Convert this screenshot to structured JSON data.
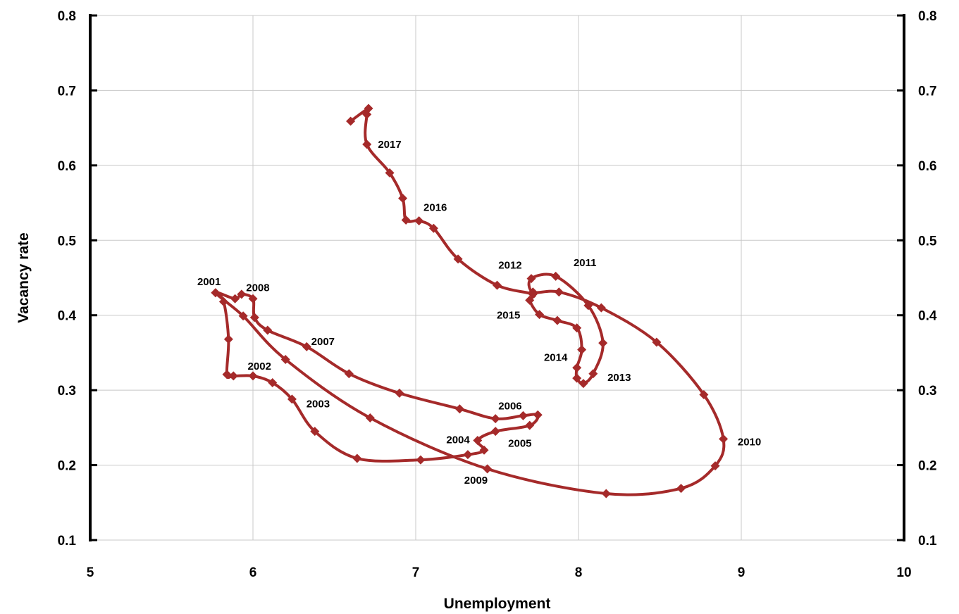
{
  "chart_data": {
    "type": "line",
    "title": "",
    "xlabel": "Unemployment",
    "ylabel": "Vacancy rate",
    "xlim": [
      5,
      10
    ],
    "ylim": [
      0.1,
      0.8
    ],
    "x_ticks": [
      "5",
      "6",
      "7",
      "8",
      "9",
      "10"
    ],
    "y_ticks": [
      "0.1",
      "0.2",
      "0.3",
      "0.4",
      "0.5",
      "0.6",
      "0.7",
      "0.8"
    ],
    "grid": true,
    "line_color": "#a52a2a",
    "marker": "diamond",
    "series": [
      {
        "points": [
          [
            5.77,
            0.43
          ],
          [
            5.82,
            0.418
          ],
          [
            5.85,
            0.368
          ],
          [
            5.84,
            0.321
          ],
          [
            5.88,
            0.319
          ],
          [
            6.0,
            0.319
          ],
          [
            6.12,
            0.31
          ],
          [
            6.24,
            0.288
          ],
          [
            6.38,
            0.245
          ],
          [
            6.64,
            0.209
          ],
          [
            7.03,
            0.207
          ],
          [
            7.32,
            0.214
          ],
          [
            7.42,
            0.22
          ],
          [
            7.38,
            0.233
          ],
          [
            7.49,
            0.245
          ],
          [
            7.7,
            0.253
          ],
          [
            7.75,
            0.267
          ],
          [
            7.66,
            0.266
          ],
          [
            7.49,
            0.262
          ],
          [
            7.27,
            0.275
          ],
          [
            6.9,
            0.296
          ],
          [
            6.59,
            0.322
          ],
          [
            6.33,
            0.358
          ],
          [
            6.09,
            0.38
          ],
          [
            6.01,
            0.397
          ],
          [
            6.0,
            0.422
          ],
          [
            5.93,
            0.428
          ],
          [
            5.89,
            0.422
          ],
          [
            5.77,
            0.43
          ],
          [
            5.94,
            0.399
          ],
          [
            6.2,
            0.341
          ],
          [
            6.72,
            0.263
          ],
          [
            7.44,
            0.195
          ],
          [
            8.17,
            0.162
          ],
          [
            8.63,
            0.169
          ],
          [
            8.84,
            0.199
          ],
          [
            8.89,
            0.235
          ],
          [
            8.77,
            0.294
          ],
          [
            8.48,
            0.364
          ],
          [
            8.14,
            0.41
          ],
          [
            7.88,
            0.431
          ],
          [
            7.72,
            0.431
          ],
          [
            7.71,
            0.449
          ],
          [
            7.86,
            0.452
          ],
          [
            8.06,
            0.413
          ],
          [
            8.15,
            0.363
          ],
          [
            8.09,
            0.322
          ],
          [
            8.03,
            0.309
          ],
          [
            7.99,
            0.316
          ],
          [
            7.99,
            0.33
          ],
          [
            8.02,
            0.354
          ],
          [
            7.99,
            0.383
          ],
          [
            7.87,
            0.393
          ],
          [
            7.76,
            0.401
          ],
          [
            7.7,
            0.42
          ],
          [
            7.72,
            0.428
          ],
          [
            7.5,
            0.44
          ],
          [
            7.26,
            0.475
          ],
          [
            7.11,
            0.516
          ],
          [
            7.02,
            0.526
          ],
          [
            6.94,
            0.527
          ],
          [
            6.92,
            0.556
          ],
          [
            6.84,
            0.59
          ],
          [
            6.7,
            0.628
          ],
          [
            6.7,
            0.668
          ],
          [
            6.71,
            0.676
          ],
          [
            6.6,
            0.659
          ]
        ]
      }
    ],
    "annotations": [
      {
        "text": "2001",
        "x": 5.73,
        "y": 0.445
      },
      {
        "text": "2008",
        "x": 6.03,
        "y": 0.437
      },
      {
        "text": "2007",
        "x": 6.43,
        "y": 0.365
      },
      {
        "text": "2002",
        "x": 6.04,
        "y": 0.332
      },
      {
        "text": "2003",
        "x": 6.4,
        "y": 0.282
      },
      {
        "text": "2006",
        "x": 7.58,
        "y": 0.279
      },
      {
        "text": "2004",
        "x": 7.26,
        "y": 0.234
      },
      {
        "text": "2005",
        "x": 7.64,
        "y": 0.229
      },
      {
        "text": "2009",
        "x": 7.37,
        "y": 0.18
      },
      {
        "text": "2010",
        "x": 9.05,
        "y": 0.231
      },
      {
        "text": "2012",
        "x": 7.58,
        "y": 0.467
      },
      {
        "text": "2011",
        "x": 8.04,
        "y": 0.47
      },
      {
        "text": "2015",
        "x": 7.57,
        "y": 0.4
      },
      {
        "text": "2014",
        "x": 7.86,
        "y": 0.344
      },
      {
        "text": "2013",
        "x": 8.25,
        "y": 0.317
      },
      {
        "text": "2016",
        "x": 7.12,
        "y": 0.544
      },
      {
        "text": "2017",
        "x": 6.84,
        "y": 0.628
      }
    ]
  }
}
